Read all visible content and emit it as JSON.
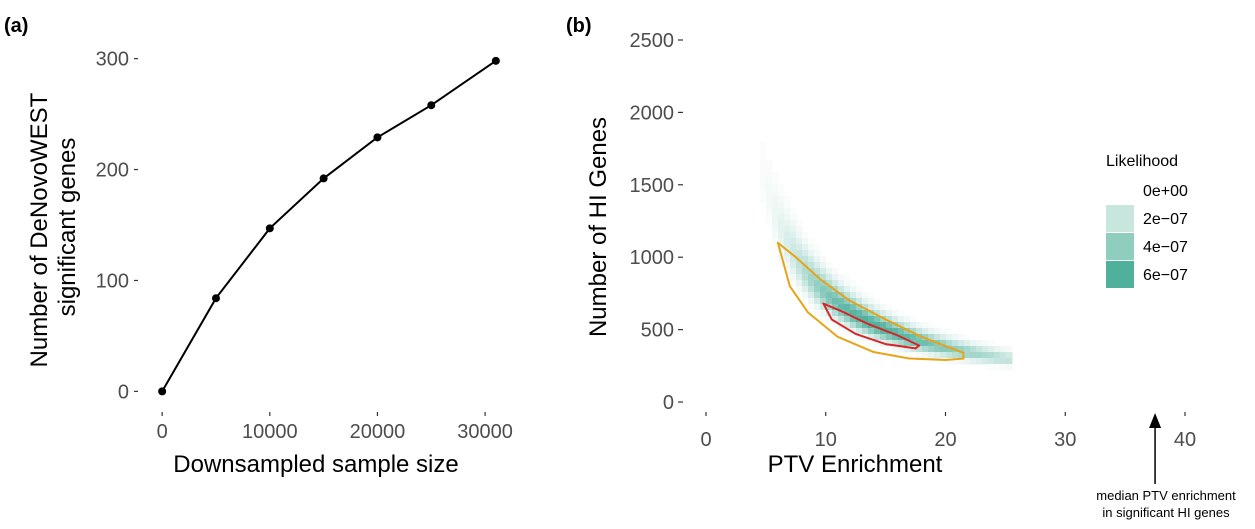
{
  "chart_data": [
    {
      "panel": "(a)",
      "type": "line",
      "x": [
        0,
        5000,
        10000,
        15000,
        20000,
        25000,
        31000
      ],
      "y": [
        0,
        84,
        147,
        192,
        229,
        258,
        298
      ],
      "xlabel": "Downsampled sample size",
      "ylabel_lines": [
        "Number of DeNovoWEST",
        "significant genes"
      ],
      "xlim": [
        -1500,
        32500
      ],
      "ylim": [
        -15,
        315
      ],
      "xticks": [
        0,
        10000,
        20000,
        30000
      ],
      "xtick_labels": [
        "0",
        "10000",
        "20000",
        "30000"
      ],
      "yticks": [
        0,
        100,
        200,
        300
      ],
      "ytick_labels": [
        "0",
        "100",
        "200",
        "300"
      ],
      "grid": false,
      "point_color": "#000000",
      "line_color": "#000000"
    },
    {
      "panel": "(b)",
      "type": "heatmap",
      "xlabel": "PTV Enrichment",
      "ylabel": "Number of HI Genes",
      "xlim": [
        0,
        41
      ],
      "ylim": [
        -70,
        2600
      ],
      "xticks": [
        0,
        10,
        20,
        30,
        40
      ],
      "xtick_labels": [
        "0",
        "10",
        "20",
        "30",
        "40"
      ],
      "yticks": [
        0,
        500,
        1000,
        1500,
        2000,
        2500
      ],
      "ytick_labels": [
        "0",
        "500",
        "1000",
        "1500",
        "2000",
        "2500"
      ],
      "grid": false,
      "likelihood_ridge": {
        "form": "product",
        "x_times_y": 7500
      },
      "likelihood_peak": {
        "x": 14,
        "y": 530,
        "value": 6.5e-07
      },
      "outer_contour": {
        "color": "#E8A317",
        "x": [
          6.0,
          7.5,
          9.5,
          12.0,
          15.0,
          18.0,
          20.5,
          21.5,
          21.5,
          20.0,
          17.0,
          14.0,
          11.0,
          8.5,
          7.0,
          6.0
        ],
        "y": [
          1100,
          1000,
          850,
          700,
          570,
          450,
          370,
          340,
          300,
          290,
          300,
          345,
          450,
          620,
          800,
          1100
        ]
      },
      "inner_contour": {
        "color": "#D62728",
        "x": [
          9.8,
          11.5,
          13.5,
          16.0,
          17.8,
          17.5,
          15.0,
          12.5,
          10.5,
          9.8
        ],
        "y": [
          680,
          620,
          540,
          460,
          390,
          370,
          400,
          470,
          570,
          680
        ]
      },
      "legend": {
        "title": "Likelihood",
        "placement": "right",
        "entries": [
          {
            "label": "0e+00",
            "color": "#ffffff"
          },
          {
            "label": "2e−07",
            "color": "#C9E6DE"
          },
          {
            "label": "4e−07",
            "color": "#8FCDBC"
          },
          {
            "label": "6e−07",
            "color": "#4FB09C"
          }
        ]
      },
      "annotation": {
        "lines": [
          "median PTV enrichment",
          "in significant HI genes"
        ],
        "x": 37.5
      }
    }
  ]
}
